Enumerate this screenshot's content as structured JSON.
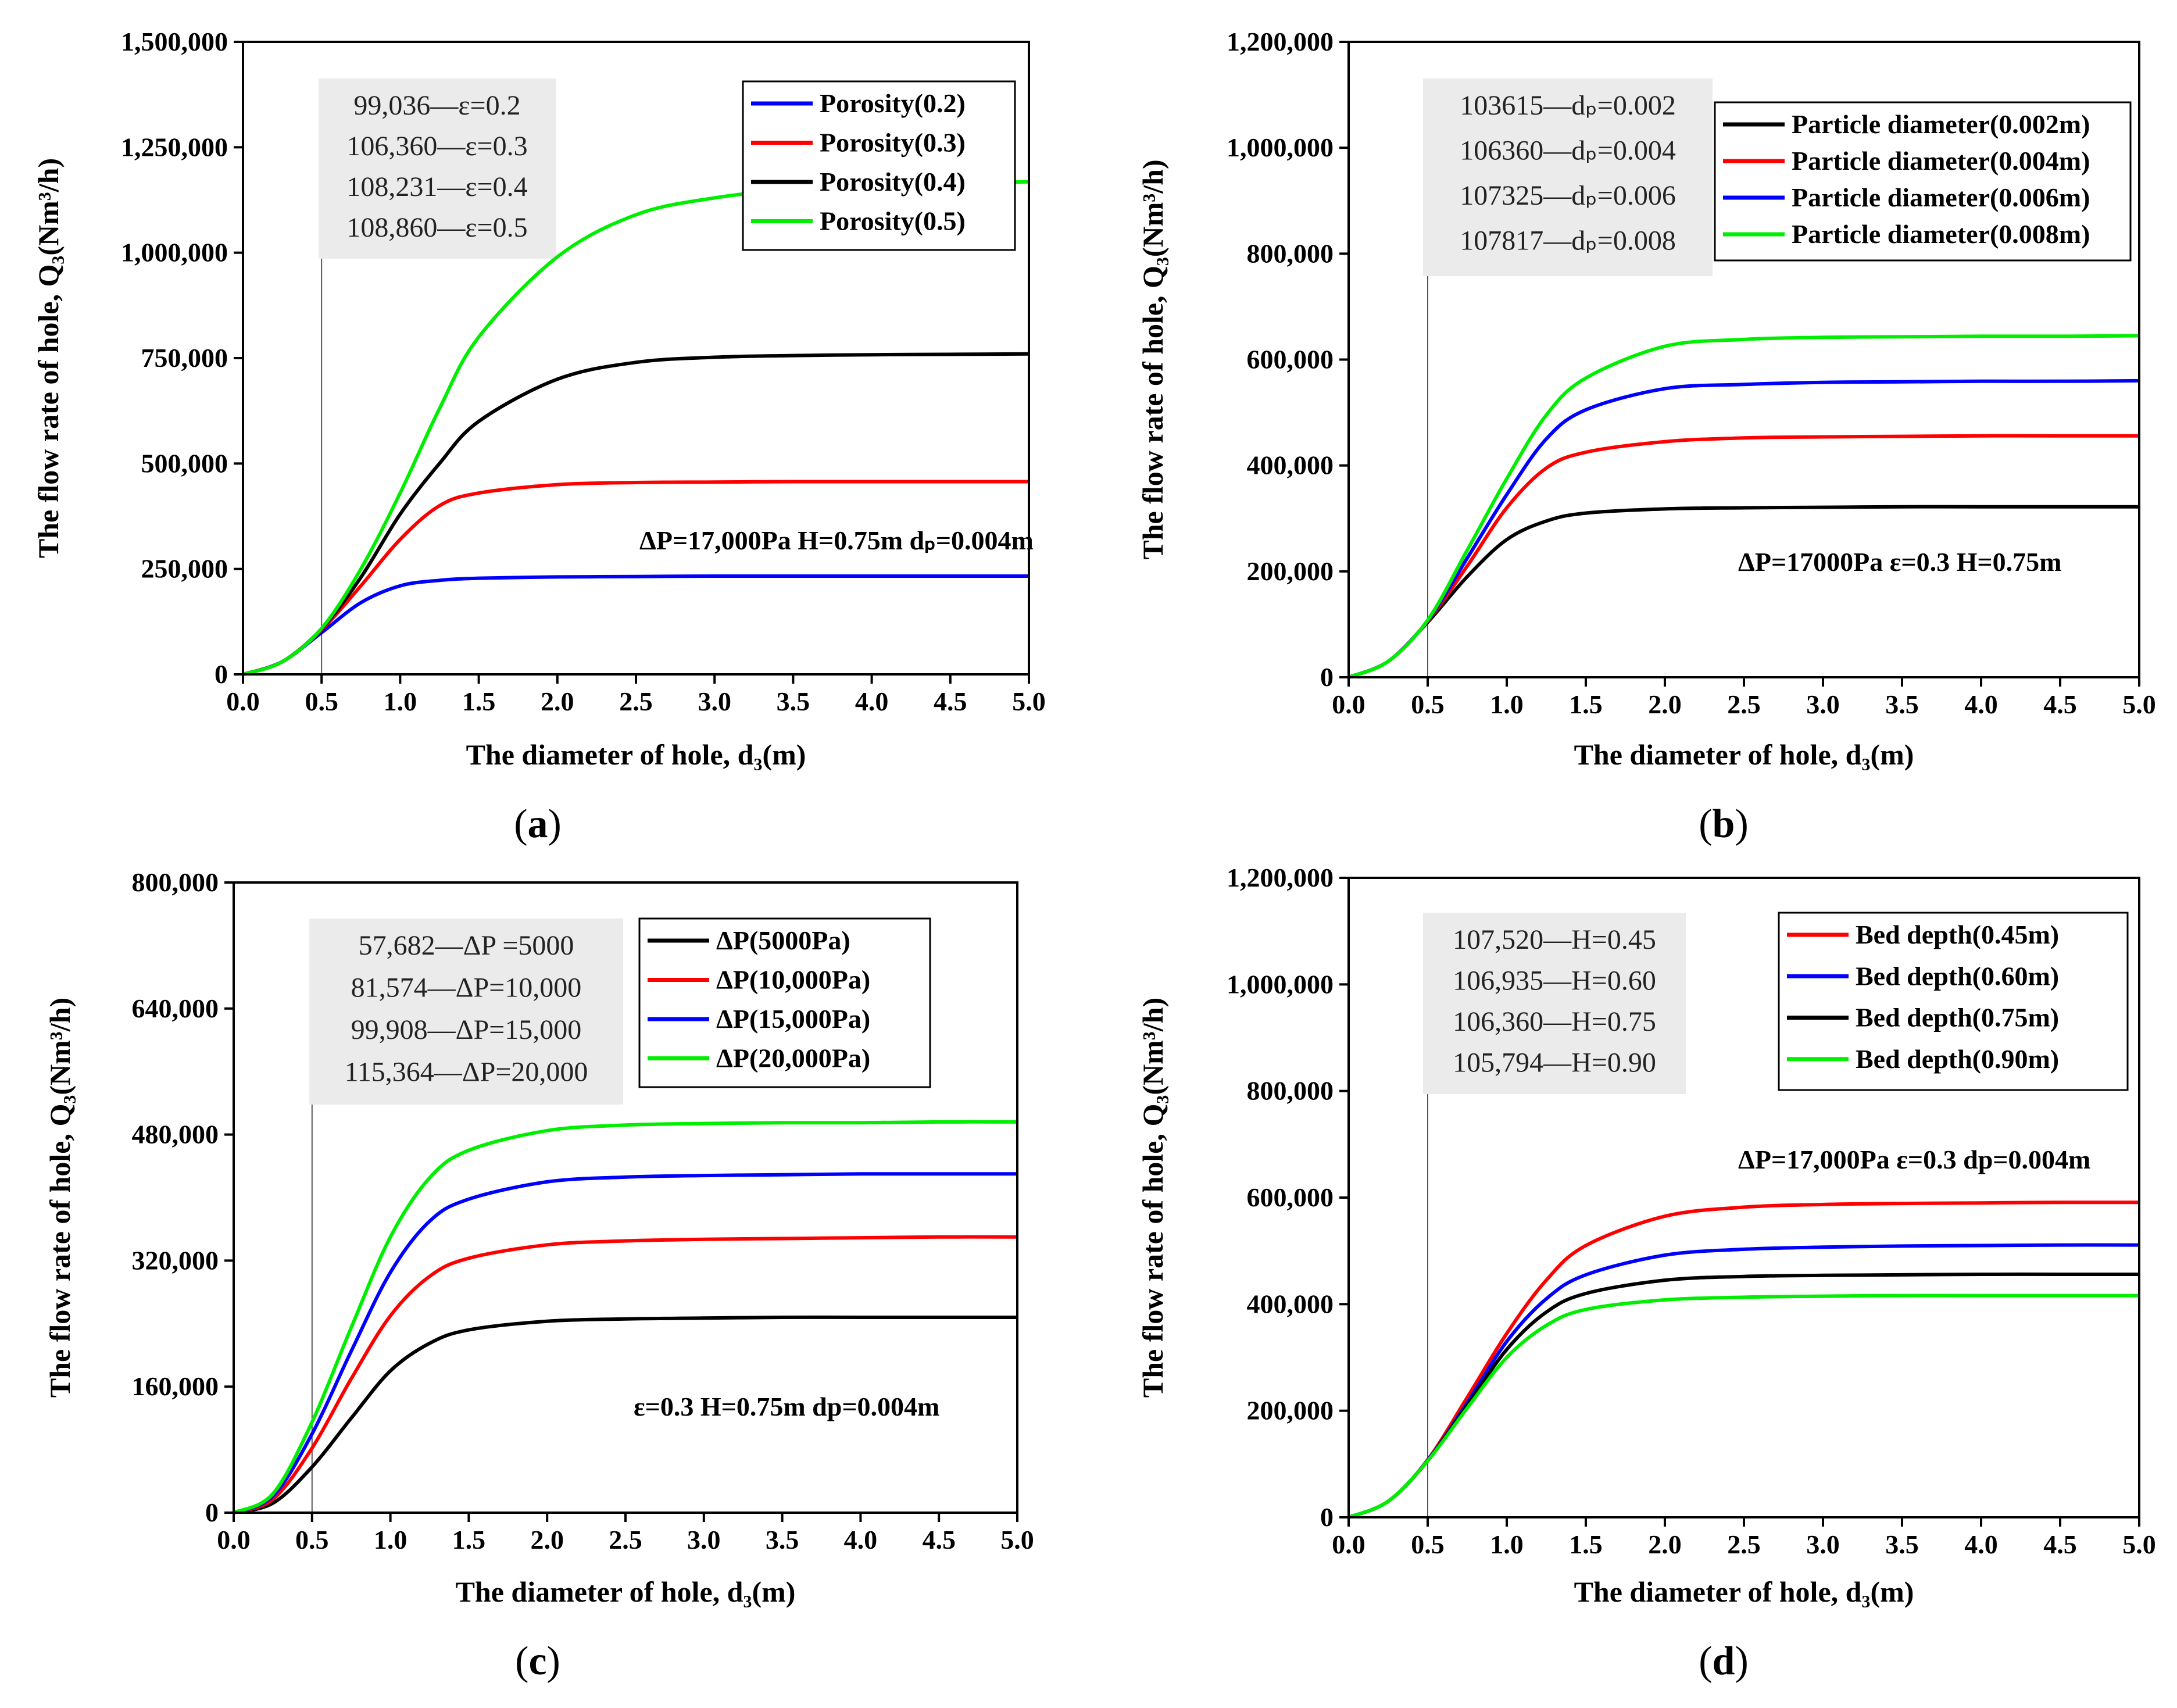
{
  "chart_data": [
    {
      "type": "line",
      "panel_label": "a",
      "xlabel": "The diameter of hole, d₃(m)",
      "ylabel": "The flow rate of hole, Q₃(Nm³/h)",
      "xlim": [
        0,
        5
      ],
      "ylim": [
        0,
        1500000
      ],
      "x_ticks": [
        "0.0",
        "0.5",
        "1.0",
        "1.5",
        "2.0",
        "2.5",
        "3.0",
        "3.5",
        "4.0",
        "4.5",
        "5.0"
      ],
      "y_ticks": [
        "0",
        "250,000",
        "500,000",
        "750,000",
        "1,000,000",
        "1,250,000",
        "1,500,000"
      ],
      "y_tick_values": [
        0,
        250000,
        500000,
        750000,
        1000000,
        1250000,
        1500000
      ],
      "vline_x": 0.5,
      "notes": [
        "99,036—ε=0.2",
        "106,360—ε=0.3",
        "108,231—ε=0.4",
        "108,860—ε=0.5"
      ],
      "conditions": "ΔP=17,000Pa  H=0.75m  dₚ=0.004m",
      "series": [
        {
          "name": "Porosity(0.2)",
          "color": "#0000ff",
          "x": [
            0,
            0.25,
            0.5,
            0.75,
            1,
            1.25,
            1.5,
            2,
            2.5,
            3,
            3.5,
            4,
            4.5,
            5
          ],
          "values": [
            0,
            30000,
            99000,
            170000,
            210000,
            223000,
            228000,
            231000,
            232000,
            233000,
            233000,
            233000,
            233000,
            233000
          ]
        },
        {
          "name": "Porosity(0.3)",
          "color": "#ff0000",
          "x": [
            0,
            0.25,
            0.5,
            0.75,
            1,
            1.25,
            1.5,
            2,
            2.5,
            3,
            3.5,
            4,
            4.5,
            5
          ],
          "values": [
            0,
            30000,
            106000,
            210000,
            320000,
            400000,
            430000,
            450000,
            455000,
            456000,
            457000,
            457000,
            457000,
            457000
          ]
        },
        {
          "name": "Porosity(0.4)",
          "color": "#000000",
          "x": [
            0,
            0.25,
            0.5,
            0.75,
            1,
            1.25,
            1.5,
            2,
            2.5,
            3,
            3.5,
            4,
            4.5,
            5
          ],
          "values": [
            0,
            30000,
            108000,
            230000,
            380000,
            500000,
            600000,
            700000,
            740000,
            752000,
            756000,
            758000,
            759000,
            760000
          ]
        },
        {
          "name": "Porosity(0.5)",
          "color": "#00ee00",
          "x": [
            0,
            0.25,
            0.5,
            0.75,
            1,
            1.25,
            1.5,
            2,
            2.5,
            3,
            3.5,
            4,
            4.5,
            5
          ],
          "values": [
            0,
            30000,
            109000,
            250000,
            430000,
            630000,
            800000,
            990000,
            1090000,
            1130000,
            1150000,
            1160000,
            1165000,
            1168000
          ]
        }
      ]
    },
    {
      "type": "line",
      "panel_label": "b",
      "xlabel": "The diameter of hole, d₃(m)",
      "ylabel": "The flow rate of hole, Q₃(Nm³/h)",
      "xlim": [
        0,
        5
      ],
      "ylim": [
        0,
        1200000
      ],
      "x_ticks": [
        "0.0",
        "0.5",
        "1.0",
        "1.5",
        "2.0",
        "2.5",
        "3.0",
        "3.5",
        "4.0",
        "4.5",
        "5.0"
      ],
      "y_ticks": [
        "0",
        "200,000",
        "400,000",
        "600,000",
        "800,000",
        "1,000,000",
        "1,200,000"
      ],
      "y_tick_values": [
        0,
        200000,
        400000,
        600000,
        800000,
        1000000,
        1200000
      ],
      "vline_x": 0.5,
      "notes": [
        "103615—dₚ=0.002",
        "106360—dₚ=0.004",
        "107325—dₚ=0.006",
        "107817—dₚ=0.008"
      ],
      "conditions": "ΔP=17000Pa  ε=0.3  H=0.75m",
      "series": [
        {
          "name": "Particle diameter(0.002m)",
          "color": "#000000",
          "x": [
            0,
            0.25,
            0.5,
            0.75,
            1,
            1.25,
            1.5,
            2,
            2.5,
            3,
            3.5,
            4,
            4.5,
            5
          ],
          "values": [
            0,
            30000,
            104000,
            190000,
            260000,
            295000,
            310000,
            318000,
            320000,
            321000,
            322000,
            322000,
            322000,
            322000
          ]
        },
        {
          "name": "Particle diameter(0.004m)",
          "color": "#ff0000",
          "x": [
            0,
            0.25,
            0.5,
            0.75,
            1,
            1.25,
            1.5,
            2,
            2.5,
            3,
            3.5,
            4,
            4.5,
            5
          ],
          "values": [
            0,
            30000,
            106000,
            210000,
            320000,
            395000,
            425000,
            445000,
            452000,
            454000,
            455000,
            456000,
            456000,
            456000
          ]
        },
        {
          "name": "Particle diameter(0.006m)",
          "color": "#0000ff",
          "x": [
            0,
            0.25,
            0.5,
            0.75,
            1,
            1.25,
            1.5,
            2,
            2.5,
            3,
            3.5,
            4,
            4.5,
            5
          ],
          "values": [
            0,
            30000,
            107000,
            225000,
            345000,
            450000,
            505000,
            545000,
            553000,
            557000,
            558000,
            559000,
            559000,
            560000
          ]
        },
        {
          "name": "Particle diameter(0.008m)",
          "color": "#00ee00",
          "x": [
            0,
            0.25,
            0.5,
            0.75,
            1,
            1.25,
            1.5,
            2,
            2.5,
            3,
            3.5,
            4,
            4.5,
            5
          ],
          "values": [
            0,
            30000,
            108000,
            240000,
            375000,
            495000,
            565000,
            625000,
            638000,
            642000,
            643000,
            644000,
            644000,
            645000
          ]
        }
      ]
    },
    {
      "type": "line",
      "panel_label": "c",
      "xlabel": "The diameter of hole, d₃(m)",
      "ylabel": "The flow rate of hole, Q₃(Nm³/h)",
      "xlim": [
        0,
        5
      ],
      "ylim": [
        0,
        800000
      ],
      "x_ticks": [
        "0.0",
        "0.5",
        "1.0",
        "1.5",
        "2.0",
        "2.5",
        "3.0",
        "3.5",
        "4.0",
        "4.5",
        "5.0"
      ],
      "y_ticks": [
        "0",
        "160,000",
        "320,000",
        "480,000",
        "640,000",
        "800,000"
      ],
      "y_tick_values": [
        0,
        160000,
        320000,
        480000,
        640000,
        800000
      ],
      "vline_x": 0.5,
      "notes": [
        "57,682—ΔP =5000",
        "81,574—ΔP=10,000",
        "99,908—ΔP=15,000",
        "115,364—ΔP=20,000"
      ],
      "conditions": "ε=0.3  H=0.75m  dp=0.004m",
      "series": [
        {
          "name": "ΔP(5000Pa)",
          "color": "#000000",
          "x": [
            0,
            0.25,
            0.5,
            0.75,
            1,
            1.25,
            1.5,
            2,
            2.5,
            3,
            3.5,
            4,
            4.5,
            5
          ],
          "values": [
            0,
            12000,
            58000,
            120000,
            180000,
            215000,
            232000,
            243000,
            246000,
            247000,
            248000,
            248000,
            248000,
            248000
          ]
        },
        {
          "name": "ΔP(10,000Pa)",
          "color": "#ff0000",
          "x": [
            0,
            0.25,
            0.5,
            0.75,
            1,
            1.25,
            1.5,
            2,
            2.5,
            3,
            3.5,
            4,
            4.5,
            5
          ],
          "values": [
            0,
            17000,
            82000,
            170000,
            250000,
            300000,
            323000,
            340000,
            345000,
            347000,
            348000,
            349000,
            350000,
            350000
          ]
        },
        {
          "name": "ΔP(15,000Pa)",
          "color": "#0000ff",
          "x": [
            0,
            0.25,
            0.5,
            0.75,
            1,
            1.25,
            1.5,
            2,
            2.5,
            3,
            3.5,
            4,
            4.5,
            5
          ],
          "values": [
            0,
            21000,
            100000,
            205000,
            305000,
            370000,
            398000,
            420000,
            426000,
            428000,
            429000,
            430000,
            430000,
            430000
          ]
        },
        {
          "name": "ΔP(20,000Pa)",
          "color": "#00ee00",
          "x": [
            0,
            0.25,
            0.5,
            0.75,
            1,
            1.25,
            1.5,
            2,
            2.5,
            3,
            3.5,
            4,
            4.5,
            5
          ],
          "values": [
            0,
            24000,
            115000,
            235000,
            350000,
            425000,
            460000,
            485000,
            492000,
            494000,
            495000,
            495000,
            496000,
            496000
          ]
        }
      ]
    },
    {
      "type": "line",
      "panel_label": "d",
      "xlabel": "The diameter of hole, d₃(m)",
      "ylabel": "The flow rate of hole, Q₃(Nm³/h)",
      "xlim": [
        0,
        5
      ],
      "ylim": [
        0,
        1200000
      ],
      "x_ticks": [
        "0.0",
        "0.5",
        "1.0",
        "1.5",
        "2.0",
        "2.5",
        "3.0",
        "3.5",
        "4.0",
        "4.5",
        "5.0"
      ],
      "y_ticks": [
        "0",
        "200,000",
        "400,000",
        "600,000",
        "800,000",
        "1,000,000",
        "1,200,000"
      ],
      "y_tick_values": [
        0,
        200000,
        400000,
        600000,
        800000,
        1000000,
        1200000
      ],
      "vline_x": 0.5,
      "notes": [
        "107,520—H=0.45",
        "106,935—H=0.60",
        "106,360—H=0.75",
        "105,794—H=0.90"
      ],
      "conditions": "ΔP=17,000Pa  ε=0.3  dp=0.004m",
      "series": [
        {
          "name": "Bed depth(0.45m)",
          "color": "#ff0000",
          "x": [
            0,
            0.25,
            0.5,
            0.75,
            1,
            1.25,
            1.5,
            2,
            2.5,
            3,
            3.5,
            4,
            4.5,
            5
          ],
          "values": [
            0,
            30000,
            108000,
            225000,
            345000,
            445000,
            510000,
            565000,
            582000,
            587000,
            589000,
            590000,
            591000,
            591000
          ]
        },
        {
          "name": "Bed depth(0.60m)",
          "color": "#0000ff",
          "x": [
            0,
            0.25,
            0.5,
            0.75,
            1,
            1.25,
            1.5,
            2,
            2.5,
            3,
            3.5,
            4,
            4.5,
            5
          ],
          "values": [
            0,
            30000,
            107000,
            215000,
            330000,
            410000,
            455000,
            492000,
            503000,
            507000,
            509000,
            510000,
            511000,
            511000
          ]
        },
        {
          "name": "Bed depth(0.75m)",
          "color": "#000000",
          "x": [
            0,
            0.25,
            0.5,
            0.75,
            1,
            1.25,
            1.5,
            2,
            2.5,
            3,
            3.5,
            4,
            4.5,
            5
          ],
          "values": [
            0,
            30000,
            106000,
            210000,
            315000,
            385000,
            420000,
            445000,
            452000,
            454000,
            455000,
            456000,
            456000,
            456000
          ]
        },
        {
          "name": "Bed depth(0.90m)",
          "color": "#00ee00",
          "x": [
            0,
            0.25,
            0.5,
            0.75,
            1,
            1.25,
            1.5,
            2,
            2.5,
            3,
            3.5,
            4,
            4.5,
            5
          ],
          "values": [
            0,
            30000,
            106000,
            205000,
            300000,
            360000,
            390000,
            408000,
            413000,
            415000,
            416000,
            416000,
            416000,
            416000
          ]
        }
      ]
    }
  ]
}
